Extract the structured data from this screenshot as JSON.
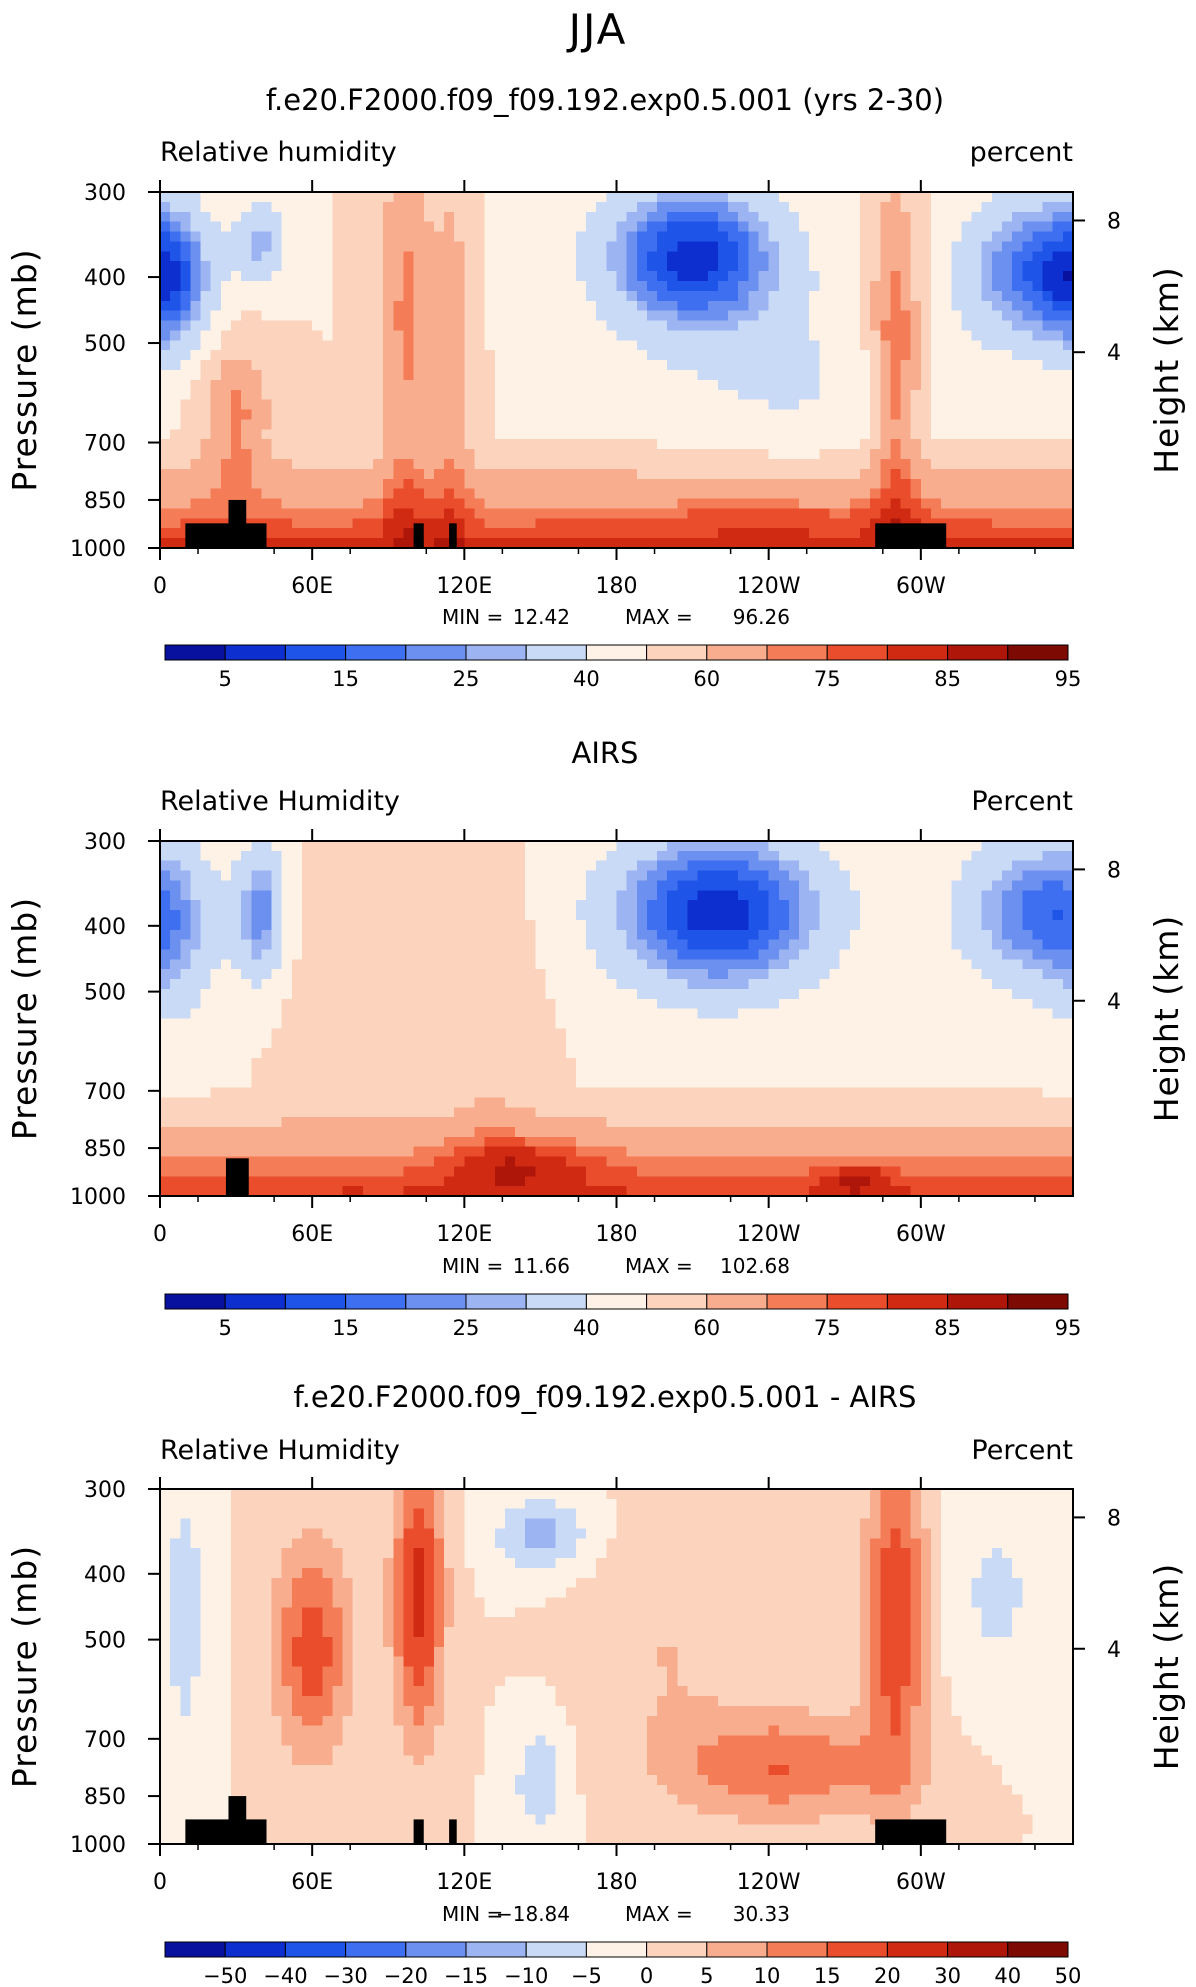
{
  "season": "JJA",
  "palette": {
    "levels10": [
      "#08119e",
      "#0e2fcf",
      "#1e54e8",
      "#3d6ff0",
      "#6b90ef",
      "#9cb4f1",
      "#c9daf6",
      "#fdf2e5",
      "#fcd3bd",
      "#f8ad8e",
      "#f47c57",
      "#e94d2c",
      "#d12a12",
      "#ad1608",
      "#7e0a04"
    ],
    "land": "#000000"
  },
  "x_tick_labels": [
    "0",
    "60E",
    "120E",
    "180",
    "120W",
    "60W"
  ],
  "chart_data": [
    {
      "type": "heatmap",
      "title": "f.e20.F2000.f09_f09.192.exp0.5.001 (yrs 2-30)",
      "label_left": "Relative humidity",
      "label_right": "percent",
      "ylabel": "Pressure (mb)",
      "ylabel_right": "Height (km)",
      "x_range": [
        0,
        360
      ],
      "y_ticks": [
        "300",
        "400",
        "500",
        "700",
        "850",
        "1000"
      ],
      "y_ticks_right": [
        "8",
        "4"
      ],
      "x_ticks": [
        "0",
        "60E",
        "120E",
        "180",
        "120W",
        "60W"
      ],
      "min_label": "MIN =",
      "min_value": "12.42",
      "max_label": "MAX =",
      "max_value": "96.26",
      "min": 12.42,
      "max": 96.26,
      "colorbar_labels": [
        "5",
        "15",
        "25",
        "40",
        "60",
        "75",
        "85",
        "95"
      ],
      "levels": [
        5,
        10,
        15,
        20,
        25,
        30,
        40,
        50,
        60,
        70,
        75,
        80,
        85,
        90,
        95
      ]
    },
    {
      "type": "heatmap",
      "title": "AIRS",
      "label_left": "Relative Humidity",
      "label_right": "Percent",
      "ylabel": "Pressure (mb)",
      "ylabel_right": "Height (km)",
      "x_range": [
        0,
        360
      ],
      "y_ticks": [
        "300",
        "400",
        "500",
        "700",
        "850",
        "1000"
      ],
      "y_ticks_right": [
        "8",
        "4"
      ],
      "x_ticks": [
        "0",
        "60E",
        "120E",
        "180",
        "120W",
        "60W"
      ],
      "min_label": "MIN =",
      "min_value": "11.66",
      "max_label": "MAX =",
      "max_value": "102.68",
      "min": 11.66,
      "max": 102.68,
      "colorbar_labels": [
        "5",
        "15",
        "25",
        "40",
        "60",
        "75",
        "85",
        "95"
      ],
      "levels": [
        5,
        10,
        15,
        20,
        25,
        30,
        40,
        50,
        60,
        70,
        75,
        80,
        85,
        90,
        95
      ]
    },
    {
      "type": "heatmap",
      "title": "f.e20.F2000.f09_f09.192.exp0.5.001 - AIRS",
      "label_left": "Relative Humidity",
      "label_right": "Percent",
      "ylabel": "Pressure (mb)",
      "ylabel_right": "Height (km)",
      "x_range": [
        0,
        360
      ],
      "y_ticks": [
        "300",
        "400",
        "500",
        "700",
        "850",
        "1000"
      ],
      "y_ticks_right": [
        "8",
        "4"
      ],
      "x_ticks": [
        "0",
        "60E",
        "120E",
        "180",
        "120W",
        "60W"
      ],
      "min_label": "MIN =",
      "min_value": "−18.84",
      "max_label": "MAX =",
      "max_value": "30.33",
      "min": -18.84,
      "max": 30.33,
      "colorbar_labels": [
        "−50",
        "−40",
        "−30",
        "−20",
        "−15",
        "−10",
        "−5",
        "0",
        "5",
        "10",
        "15",
        "20",
        "30",
        "40",
        "50"
      ],
      "levels": [
        -50,
        -40,
        -30,
        -20,
        -15,
        -10,
        -5,
        0,
        5,
        10,
        15,
        20,
        30,
        40,
        50
      ]
    }
  ]
}
